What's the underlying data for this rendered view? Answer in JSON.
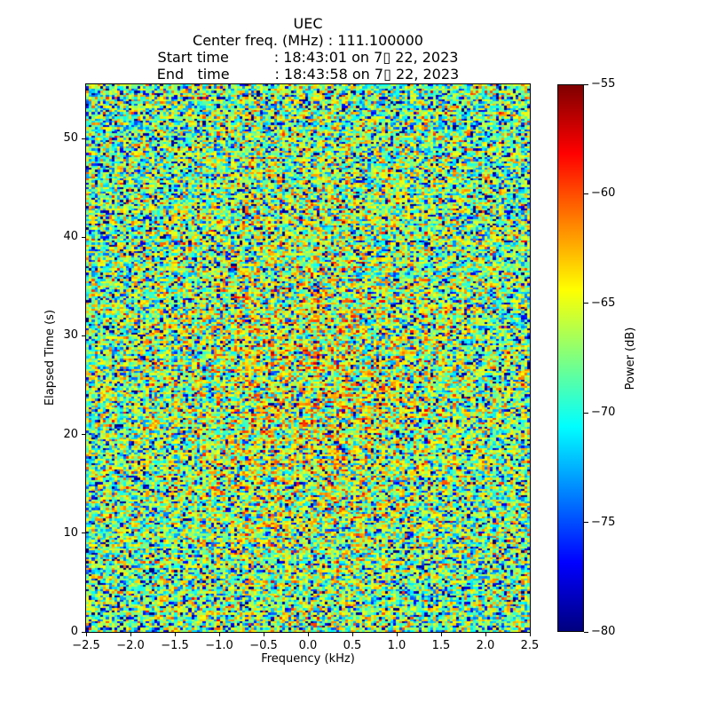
{
  "chart_data": {
    "type": "heatmap",
    "title_lines": [
      "UEC",
      "Center freq. (MHz) : 111.100000",
      "Start time          : 18:43:01 on 7▯ 22, 2023",
      "End   time          : 18:43:58 on 7▯ 22, 2023"
    ],
    "xlabel": "Frequency (kHz)",
    "ylabel": "Elapsed Time (s)",
    "colorbar_label": "Power (dB)",
    "xlim": [
      -2.5,
      2.5
    ],
    "ylim": [
      0,
      55.5
    ],
    "clim": [
      -80,
      -55
    ],
    "grid": false,
    "legend": "none",
    "x_ticks": [
      {
        "v": -2.5,
        "label": "−2.5"
      },
      {
        "v": -2.0,
        "label": "−2.0"
      },
      {
        "v": -1.5,
        "label": "−1.5"
      },
      {
        "v": -1.0,
        "label": "−1.0"
      },
      {
        "v": -0.5,
        "label": "−0.5"
      },
      {
        "v": 0.0,
        "label": "0.0"
      },
      {
        "v": 0.5,
        "label": "0.5"
      },
      {
        "v": 1.0,
        "label": "1.0"
      },
      {
        "v": 1.5,
        "label": "1.5"
      },
      {
        "v": 2.0,
        "label": "2.0"
      },
      {
        "v": 2.5,
        "label": "2.5"
      }
    ],
    "y_ticks": [
      {
        "v": 0,
        "label": "0"
      },
      {
        "v": 10,
        "label": "10"
      },
      {
        "v": 20,
        "label": "20"
      },
      {
        "v": 30,
        "label": "30"
      },
      {
        "v": 40,
        "label": "40"
      },
      {
        "v": 50,
        "label": "50"
      }
    ],
    "cbar_ticks": [
      {
        "v": -55,
        "label": "−55"
      },
      {
        "v": -60,
        "label": "−60"
      },
      {
        "v": -65,
        "label": "−65"
      },
      {
        "v": -70,
        "label": "−70"
      },
      {
        "v": -75,
        "label": "−75"
      },
      {
        "v": -80,
        "label": "−80"
      }
    ],
    "colormap": {
      "name": "jet",
      "stops": [
        [
          0.0,
          "#00007F"
        ],
        [
          0.125,
          "#0000FF"
        ],
        [
          0.375,
          "#00FFFF"
        ],
        [
          0.625,
          "#FFFF00"
        ],
        [
          0.875,
          "#FF0000"
        ],
        [
          1.0,
          "#7F0000"
        ]
      ]
    },
    "data_model": {
      "kind": "broadband-noise",
      "seed": 20230722,
      "freq_bins": 156,
      "time_bins": 256,
      "base_power_db": -66.8,
      "center_boost_db": 2.8,
      "boost_freq_sigma_khz": 1.3,
      "boost_time_center_s": 25,
      "boost_time_sigma_s": 16
    }
  }
}
